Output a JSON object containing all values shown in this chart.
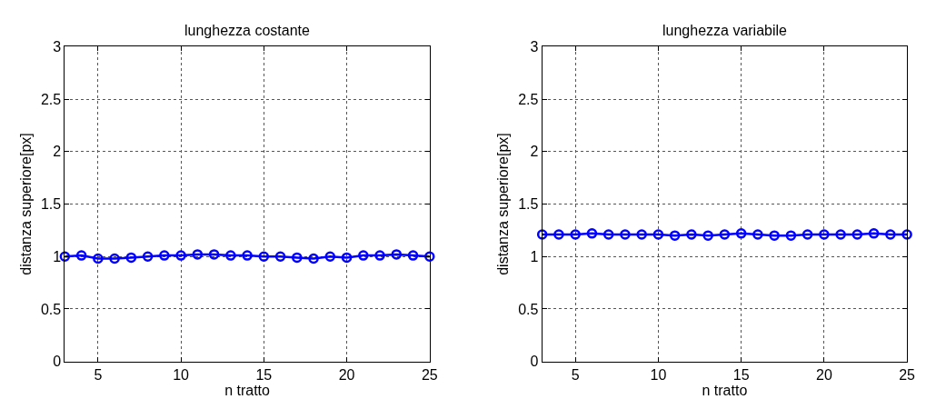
{
  "chart_data": [
    {
      "type": "line",
      "title": "lunghezza costante",
      "xlabel": "n tratto",
      "ylabel": "distanza superiore[px]",
      "x": [
        3,
        4,
        5,
        6,
        7,
        8,
        9,
        10,
        11,
        12,
        13,
        14,
        15,
        16,
        17,
        18,
        19,
        20,
        21,
        22,
        23,
        24,
        25
      ],
      "series": [
        {
          "color": "#0000ff",
          "values": [
            1.0,
            1.01,
            0.98,
            0.98,
            0.99,
            1.0,
            1.01,
            1.01,
            1.02,
            1.02,
            1.01,
            1.01,
            1.0,
            1.0,
            0.99,
            0.98,
            1.0,
            0.99,
            1.01,
            1.01,
            1.02,
            1.01,
            1.0
          ]
        }
      ],
      "xlim": [
        3,
        25
      ],
      "xticks": [
        5,
        10,
        15,
        20,
        25
      ],
      "ylim": [
        0,
        3
      ],
      "yticks": [
        0,
        0.5,
        1,
        1.5,
        2,
        2.5,
        3
      ],
      "grid": true,
      "marker": "circle",
      "line_style": "solid"
    },
    {
      "type": "line",
      "title": "lunghezza variabile",
      "xlabel": "n tratto",
      "ylabel": "distanza superiore[px]",
      "x": [
        3,
        4,
        5,
        6,
        7,
        8,
        9,
        10,
        11,
        12,
        13,
        14,
        15,
        16,
        17,
        18,
        19,
        20,
        21,
        22,
        23,
        24,
        25
      ],
      "series": [
        {
          "color": "#0000ff",
          "values": [
            1.21,
            1.21,
            1.21,
            1.22,
            1.21,
            1.21,
            1.21,
            1.21,
            1.2,
            1.21,
            1.2,
            1.21,
            1.22,
            1.21,
            1.2,
            1.2,
            1.21,
            1.21,
            1.21,
            1.21,
            1.22,
            1.21,
            1.21
          ]
        }
      ],
      "xlim": [
        3,
        25
      ],
      "xticks": [
        5,
        10,
        15,
        20,
        25
      ],
      "ylim": [
        0,
        3
      ],
      "yticks": [
        0,
        0.5,
        1,
        1.5,
        2,
        2.5,
        3
      ],
      "grid": true,
      "marker": "circle",
      "line_style": "solid"
    }
  ]
}
